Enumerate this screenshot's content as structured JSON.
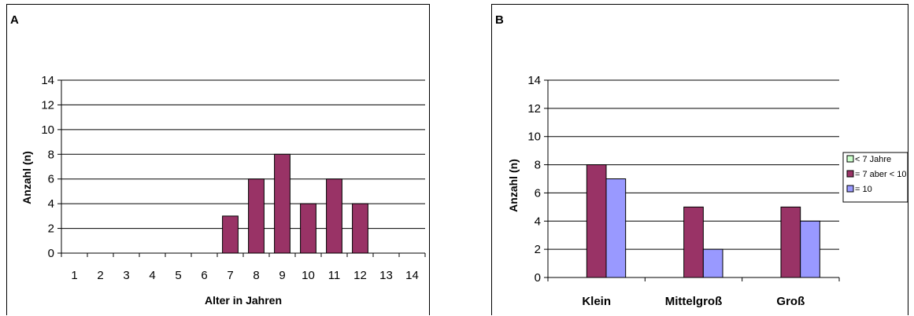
{
  "chart_data": [
    {
      "type": "bar",
      "panel_label": "A",
      "xlabel": "Alter in Jahren",
      "ylabel": "Anzahl (n)",
      "ylim": [
        0,
        14
      ],
      "yticks": [
        0,
        2,
        4,
        6,
        8,
        10,
        12,
        14
      ],
      "grid": true,
      "categories": [
        "1",
        "2",
        "3",
        "4",
        "5",
        "6",
        "7",
        "8",
        "9",
        "10",
        "11",
        "12",
        "13",
        "14"
      ],
      "values": [
        0,
        0,
        0,
        0,
        0,
        0,
        3,
        6,
        8,
        4,
        6,
        4,
        0,
        0
      ],
      "color": "#993366"
    },
    {
      "type": "bar",
      "panel_label": "B",
      "xlabel": "",
      "ylabel": "Anzahl (n)",
      "ylim": [
        0,
        14
      ],
      "yticks": [
        0,
        2,
        4,
        6,
        8,
        10,
        12,
        14
      ],
      "grid": true,
      "legend_position": "right",
      "categories": [
        "Klein",
        "Mittelgroß",
        "Groß"
      ],
      "series": [
        {
          "name": "< 7 Jahre",
          "values": [
            0,
            0,
            0
          ],
          "color": "#ccffcc"
        },
        {
          "name": "= 7 aber < 10",
          "values": [
            8,
            5,
            5
          ],
          "color": "#993366"
        },
        {
          "name": "= 10",
          "values": [
            7,
            2,
            4
          ],
          "color": "#9999ff"
        }
      ]
    }
  ]
}
